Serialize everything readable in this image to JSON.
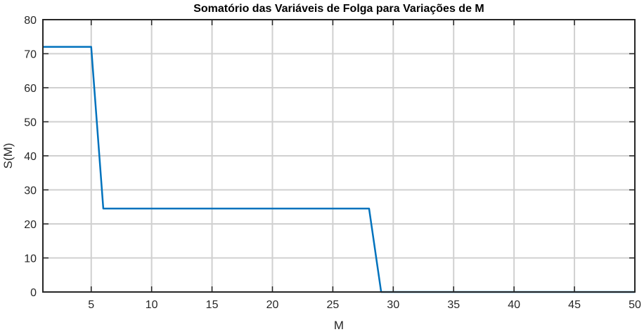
{
  "chart_data": {
    "type": "line",
    "title": "Somatório das Variáveis de Folga para Variações de M",
    "xlabel": "M",
    "ylabel": "S(M)",
    "xlim": [
      1,
      50
    ],
    "ylim": [
      0,
      80
    ],
    "xticks": [
      5,
      10,
      15,
      20,
      25,
      30,
      35,
      40,
      45,
      50
    ],
    "yticks": [
      0,
      10,
      20,
      30,
      40,
      50,
      60,
      70,
      80
    ],
    "grid": true,
    "series": [
      {
        "name": "S(M)",
        "color": "#0072BD",
        "x": [
          1,
          2,
          3,
          4,
          5,
          6,
          7,
          8,
          9,
          10,
          11,
          12,
          13,
          14,
          15,
          16,
          17,
          18,
          19,
          20,
          21,
          22,
          23,
          24,
          25,
          26,
          27,
          28,
          29,
          30,
          31,
          32,
          33,
          34,
          35,
          36,
          37,
          38,
          39,
          40,
          41,
          42,
          43,
          44,
          45,
          46,
          47,
          48,
          49,
          50
        ],
        "y": [
          72,
          72,
          72,
          72,
          72,
          24.5,
          24.5,
          24.5,
          24.5,
          24.5,
          24.5,
          24.5,
          24.5,
          24.5,
          24.5,
          24.5,
          24.5,
          24.5,
          24.5,
          24.5,
          24.5,
          24.5,
          24.5,
          24.5,
          24.5,
          24.5,
          24.5,
          24.5,
          0,
          0,
          0,
          0,
          0,
          0,
          0,
          0,
          0,
          0,
          0,
          0,
          0,
          0,
          0,
          0,
          0,
          0,
          0,
          0,
          0,
          0
        ]
      }
    ]
  }
}
